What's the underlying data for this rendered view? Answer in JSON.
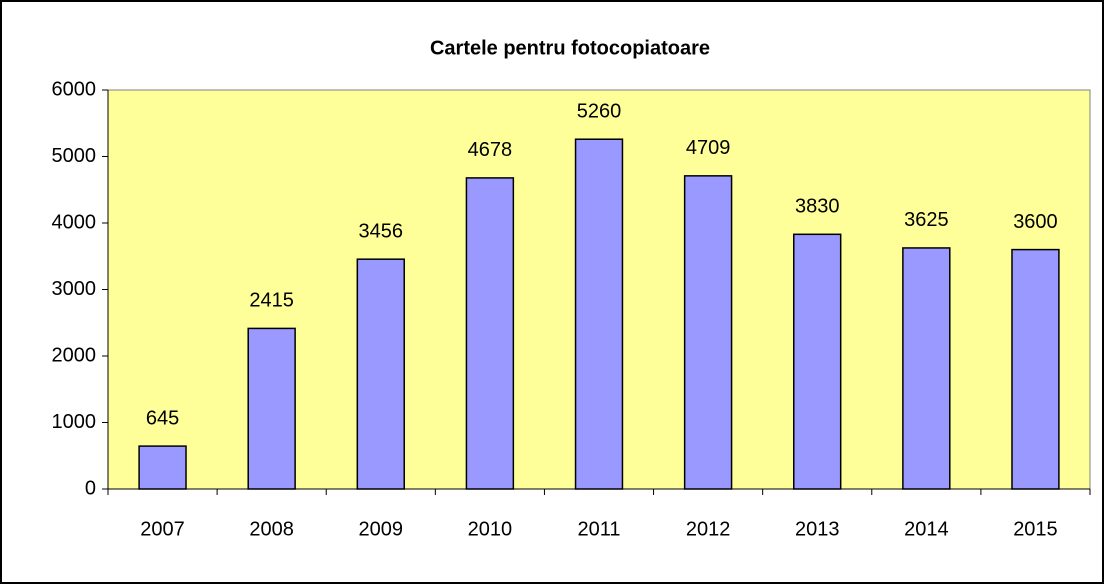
{
  "chart_data": {
    "type": "bar",
    "title": "Cartele pentru fotocopiatoare",
    "categories": [
      "2007",
      "2008",
      "2009",
      "2010",
      "2011",
      "2012",
      "2013",
      "2014",
      "2015"
    ],
    "values": [
      645,
      2415,
      3456,
      4678,
      5260,
      4709,
      3830,
      3625,
      3600
    ],
    "color": "#9999ff",
    "ylim": [
      0,
      6000
    ],
    "yticks": [
      0,
      1000,
      2000,
      3000,
      4000,
      5000,
      6000
    ],
    "grid": false,
    "plot_background": "#ffff99"
  }
}
